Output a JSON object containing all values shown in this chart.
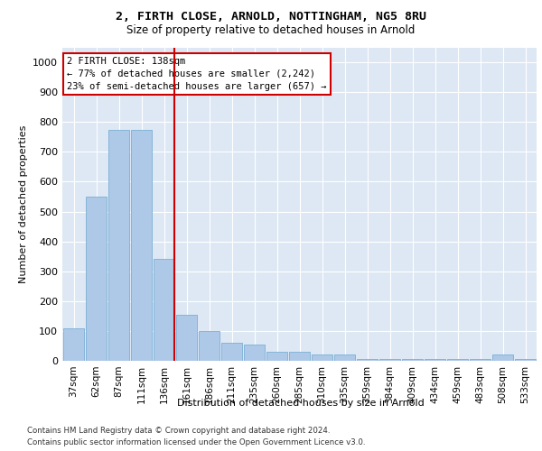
{
  "title": "2, FIRTH CLOSE, ARNOLD, NOTTINGHAM, NG5 8RU",
  "subtitle": "Size of property relative to detached houses in Arnold",
  "xlabel": "Distribution of detached houses by size in Arnold",
  "ylabel": "Number of detached properties",
  "footer_line1": "Contains HM Land Registry data © Crown copyright and database right 2024.",
  "footer_line2": "Contains public sector information licensed under the Open Government Licence v3.0.",
  "annotation_line1": "2 FIRTH CLOSE: 138sqm",
  "annotation_line2": "← 77% of detached houses are smaller (2,242)",
  "annotation_line3": "23% of semi-detached houses are larger (657) →",
  "bar_color": "#aec9e8",
  "bar_edge_color": "#7aafd4",
  "vline_color": "#cc0000",
  "annotation_box_edgecolor": "#cc0000",
  "background_color": "#dde8f4",
  "grid_color": "#ffffff",
  "categories": [
    "37sqm",
    "62sqm",
    "87sqm",
    "111sqm",
    "136sqm",
    "161sqm",
    "186sqm",
    "211sqm",
    "235sqm",
    "260sqm",
    "285sqm",
    "310sqm",
    "335sqm",
    "359sqm",
    "384sqm",
    "409sqm",
    "434sqm",
    "459sqm",
    "483sqm",
    "508sqm",
    "533sqm"
  ],
  "values": [
    110,
    550,
    775,
    775,
    340,
    155,
    100,
    60,
    55,
    30,
    30,
    20,
    20,
    5,
    5,
    5,
    5,
    5,
    5,
    20,
    5
  ],
  "ylim": [
    0,
    1050
  ],
  "yticks": [
    0,
    100,
    200,
    300,
    400,
    500,
    600,
    700,
    800,
    900,
    1000
  ],
  "vline_x_index": 4,
  "figsize": [
    6.0,
    5.0
  ],
  "dpi": 100
}
